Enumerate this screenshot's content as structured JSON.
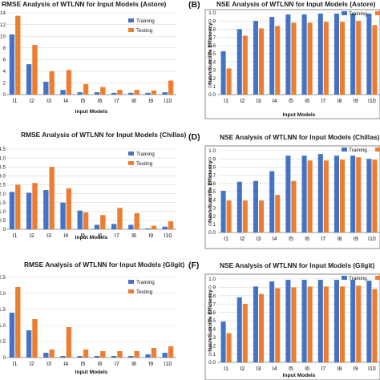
{
  "colors": {
    "training": "#4472c4",
    "testing": "#ed7d31",
    "frame": "#6b6b6b",
    "grid": "#d9d9d9"
  },
  "chart_data": [
    {
      "id": "A",
      "type": "bar",
      "letter": "",
      "title": "RMSE Analysis of WTLNN for Input Models (Astore)",
      "xlabel": "Input Models",
      "ylabel": "",
      "categories": [
        "I1",
        "I2",
        "I3",
        "I4",
        "I5",
        "I6",
        "I7",
        "I8",
        "I9",
        "I10"
      ],
      "ylim": [
        0,
        14
      ],
      "yticks": [
        0,
        2,
        4,
        6,
        8,
        10,
        12,
        14
      ],
      "grid": true,
      "legend": "top-right",
      "series": [
        {
          "name": "Training",
          "values": [
            10.3,
            5.2,
            2.2,
            0.8,
            0.4,
            0.4,
            0.3,
            0.3,
            0.3,
            0.4
          ]
        },
        {
          "name": "Testing",
          "values": [
            13.5,
            8.5,
            4.0,
            4.2,
            1.8,
            1.3,
            0.8,
            0.8,
            0.7,
            2.4
          ]
        }
      ]
    },
    {
      "id": "B",
      "type": "bar",
      "letter": "(B)",
      "title": "NSE Analysis of WTLNN for Input Models (Astore)",
      "xlabel": "Input Models",
      "ylabel": "Nash-Sutcliffe Efficiency",
      "categories": [
        "I1",
        "I2",
        "I3",
        "I4",
        "I5",
        "I6",
        "I7",
        "I8",
        "I9",
        "I10"
      ],
      "ylim": [
        0,
        1.0
      ],
      "yticks": [
        0,
        0.1,
        0.2,
        0.3,
        0.4,
        0.5,
        0.6,
        0.7,
        0.8,
        0.9,
        1.0
      ],
      "ytick_labels": [
        "0.0",
        "0.1",
        "0.2",
        "0.3",
        "0.4",
        "0.5",
        "0.6",
        "0.7",
        "0.8",
        "0.9",
        "1.0"
      ],
      "grid": true,
      "legend": "top-right",
      "series": [
        {
          "name": "Training",
          "values": [
            0.53,
            0.8,
            0.9,
            0.95,
            0.98,
            0.98,
            0.99,
            0.99,
            0.99,
            0.99
          ]
        },
        {
          "name": "Testing",
          "values": [
            0.32,
            0.72,
            0.81,
            0.84,
            0.88,
            0.88,
            0.89,
            0.89,
            0.9,
            0.85
          ]
        }
      ]
    },
    {
      "id": "C",
      "type": "bar",
      "letter": "",
      "title": "RMSE Analysis of WTLNN for Input Models (Chillas)",
      "xlabel": "Input Models",
      "ylabel": "",
      "categories": [
        "I1",
        "I2",
        "I3",
        "I4",
        "I5",
        "I6",
        "I7",
        "I8",
        "I9",
        "I10"
      ],
      "ylim": [
        0,
        4.5
      ],
      "yticks": [
        0,
        0.5,
        1.0,
        1.5,
        2.0,
        2.5,
        3.0,
        3.5,
        4.0,
        4.5
      ],
      "ytick_labels": [
        "0",
        "0.5",
        "1.0",
        "1.5",
        "2.0",
        "2.5",
        "3.0",
        "3.5",
        "4.0",
        "4.5"
      ],
      "grid": true,
      "legend": "top-right",
      "series": [
        {
          "name": "Training",
          "values": [
            2.1,
            2.05,
            2.2,
            1.5,
            1.05,
            0.25,
            0.3,
            0.25,
            0.05,
            0.15
          ]
        },
        {
          "name": "Testing",
          "values": [
            2.5,
            2.6,
            3.5,
            2.3,
            0.95,
            0.8,
            1.2,
            0.9,
            0.2,
            0.45
          ]
        }
      ]
    },
    {
      "id": "D",
      "type": "bar",
      "letter": "(D)",
      "title": "NSE Analysis of WTLNN for Input Models (Chillas)",
      "xlabel": "",
      "ylabel": "Nash-Sutcliffe Efficiency",
      "categories": [
        "I1",
        "I2",
        "I3",
        "I4",
        "I5",
        "I6",
        "I7",
        "I8",
        "I9",
        "I10"
      ],
      "ylim": [
        0,
        1.0
      ],
      "yticks": [
        0,
        0.1,
        0.2,
        0.3,
        0.4,
        0.5,
        0.6,
        0.7,
        0.8,
        0.9,
        1.0
      ],
      "ytick_labels": [
        "0.0",
        "0.1",
        "0.2",
        "0.3",
        "0.4",
        "0.5",
        "0.6",
        "0.7",
        "0.8",
        "0.9",
        "1.0"
      ],
      "grid": true,
      "legend": "top-right",
      "series": [
        {
          "name": "Training",
          "values": [
            0.51,
            0.62,
            0.63,
            0.75,
            0.94,
            0.94,
            0.96,
            0.94,
            0.94,
            0.9
          ]
        },
        {
          "name": "Testing",
          "values": [
            0.39,
            0.39,
            0.39,
            0.46,
            0.63,
            0.88,
            0.88,
            0.89,
            0.92,
            0.89
          ]
        }
      ]
    },
    {
      "id": "E",
      "type": "bar",
      "letter": "",
      "title": "RMSE Analysis of WTLNN for Input Models (Gilgit)",
      "xlabel": "Input Models",
      "ylabel": "",
      "categories": [
        "I1",
        "I2",
        "I3",
        "I4",
        "I5",
        "I6",
        "I7",
        "I8",
        "I9",
        "I10"
      ],
      "ylim": [
        0,
        2.5
      ],
      "yticks": [
        0,
        0.5,
        1.0,
        1.5,
        2.0,
        2.5
      ],
      "ytick_labels": [
        "0",
        "0.5",
        "1.0",
        "1.5",
        "2.0",
        "2.5"
      ],
      "grid": true,
      "legend": "top-right",
      "series": [
        {
          "name": "Training",
          "values": [
            1.4,
            0.85,
            0.15,
            0.05,
            0.05,
            0.05,
            0.05,
            0.05,
            0.1,
            0.15
          ]
        },
        {
          "name": "Testing",
          "values": [
            2.2,
            1.2,
            0.25,
            0.95,
            0.25,
            0.2,
            0.2,
            0.2,
            0.3,
            0.35
          ]
        }
      ]
    },
    {
      "id": "F",
      "type": "bar",
      "letter": "(F)",
      "title": "NSE Analysis of WTLNN for Input Models (Gilgit)",
      "xlabel": "Input Models",
      "ylabel": "Nash-Sutcliffe Efficiency",
      "categories": [
        "I1",
        "I2",
        "I3",
        "I4",
        "I5",
        "I6",
        "I7",
        "I8",
        "I9",
        "I10"
      ],
      "ylim": [
        0,
        1.0
      ],
      "yticks": [
        0,
        0.1,
        0.2,
        0.3,
        0.4,
        0.5,
        0.6,
        0.7,
        0.8,
        0.9,
        1.0
      ],
      "ytick_labels": [
        "0.0",
        "0.1",
        "0.2",
        "0.3",
        "0.4",
        "0.5",
        "0.6",
        "0.7",
        "0.8",
        "0.9",
        "1.0"
      ],
      "grid": true,
      "legend": "top-right",
      "series": [
        {
          "name": "Training",
          "values": [
            0.49,
            0.78,
            0.91,
            0.97,
            0.99,
            0.99,
            0.99,
            0.99,
            0.99,
            0.98
          ]
        },
        {
          "name": "Testing",
          "values": [
            0.35,
            0.7,
            0.82,
            0.89,
            0.9,
            0.91,
            0.91,
            0.91,
            0.92,
            0.88
          ]
        }
      ]
    }
  ]
}
